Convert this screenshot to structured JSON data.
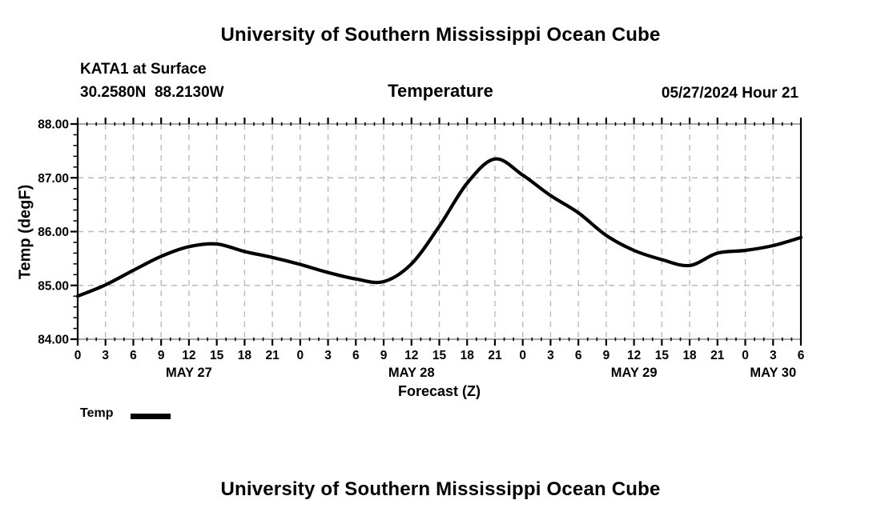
{
  "page": {
    "top_title": "University of Southern Mississippi Ocean Cube",
    "bottom_title": "University of Southern Mississippi Ocean Cube"
  },
  "header": {
    "station": "KATA1 at Surface",
    "coordinates": "30.2580N  88.2130W",
    "variable_title": "Temperature",
    "datetime": "05/27/2024 Hour 21"
  },
  "legend": {
    "label": "Temp"
  },
  "colors": {
    "line": "#000000",
    "grid": "#bbbbbb",
    "axis_side": "#000000",
    "axis_topbottom": "#8a8a8a",
    "text": "#000000",
    "background": "#ffffff"
  },
  "chart_data": {
    "type": "line",
    "title": "Temperature",
    "station": "KATA1 at Surface",
    "location": "30.2580N  88.2130W",
    "issued": "05/27/2024 Hour 21",
    "xlabel": "Forecast (Z)",
    "ylabel": "Temp (degF)",
    "ylim": [
      84.0,
      88.0
    ],
    "xlim_hours": [
      0,
      78
    ],
    "x_major_step_hours": 3,
    "x_minor_step_hours": 1,
    "y_major_step": 1.0,
    "y_minor_step": 0.2,
    "grid": true,
    "legend_position": "bottom-left",
    "yticks": [
      "84.00",
      "85.00",
      "86.00",
      "87.00",
      "88.00"
    ],
    "x_hour_labels": [
      "0",
      "3",
      "6",
      "9",
      "12",
      "15",
      "18",
      "21",
      "0",
      "3",
      "6",
      "9",
      "12",
      "15",
      "18",
      "21",
      "0",
      "3",
      "6",
      "9",
      "12",
      "15",
      "18",
      "21",
      "0",
      "3",
      "6"
    ],
    "date_labels": [
      {
        "label": "MAY 27",
        "hour": 12
      },
      {
        "label": "MAY 28",
        "hour": 36
      },
      {
        "label": "MAY 29",
        "hour": 60
      },
      {
        "label": "MAY 30",
        "hour": 75
      }
    ],
    "series": [
      {
        "name": "Temp",
        "color": "#000000",
        "x_hours": [
          0,
          3,
          6,
          9,
          12,
          15,
          18,
          21,
          24,
          27,
          30,
          33,
          36,
          39,
          42,
          45,
          48,
          51,
          54,
          57,
          60,
          63,
          66,
          69,
          72,
          75,
          78
        ],
        "values": [
          84.8,
          85.01,
          85.28,
          85.54,
          85.72,
          85.77,
          85.63,
          85.52,
          85.39,
          85.24,
          85.12,
          85.07,
          85.4,
          86.1,
          86.9,
          87.35,
          87.05,
          86.67,
          86.35,
          85.93,
          85.65,
          85.48,
          85.37,
          85.6,
          85.65,
          85.74,
          85.89
        ]
      }
    ]
  }
}
